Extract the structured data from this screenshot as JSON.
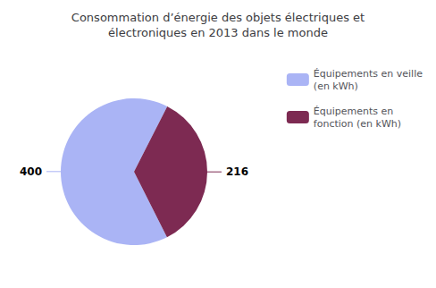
{
  "chart_data": {
    "type": "pie",
    "title": "Consommation d’énergie des objets électriques et\nélectroniques en 2013 dans le monde",
    "categories": [
      "Équipements en veille\n(en kWh)",
      "Équipements en\nfonction (en kWh)"
    ],
    "values": [
      400,
      216
    ],
    "colors": [
      "#aab4f5",
      "#7d2a52"
    ],
    "data_labels": true,
    "legend": "upper right"
  }
}
